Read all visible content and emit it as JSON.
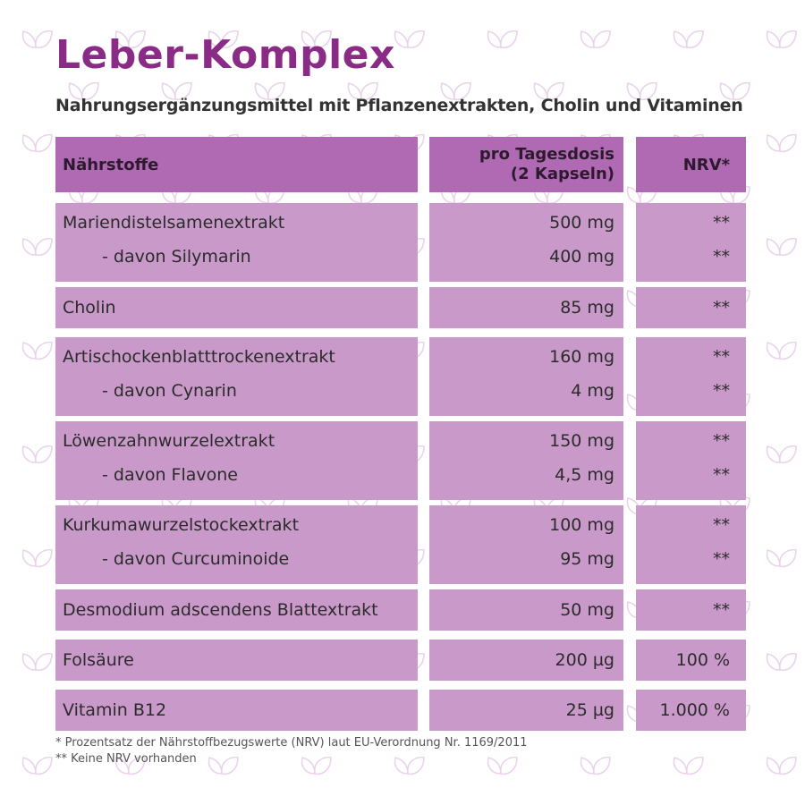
{
  "title": "Leber-Komplex",
  "subtitle": "Nahrungsergänzungsmittel mit Pflanzenextrakten, Cholin und Vitaminen",
  "table": {
    "headers": {
      "nutrients": "Nährstoffe",
      "per_dose_line1": "pro Tagesdosis",
      "per_dose_line2": "(2 Kapseln)",
      "nrv": "NRV*"
    },
    "groups": [
      {
        "rows": [
          {
            "name": "Mariendistelsamenextrakt",
            "amount": "500 mg",
            "nrv": "**"
          },
          {
            "name": "- davon Silymarin",
            "amount": "400 mg",
            "nrv": "**"
          }
        ]
      },
      {
        "rows": [
          {
            "name": "Cholin",
            "amount": "85 mg",
            "nrv": "**"
          }
        ]
      },
      {
        "rows": [
          {
            "name": "Artischockenblatttrockenextrakt",
            "amount": "160 mg",
            "nrv": "**"
          },
          {
            "name": "- davon Cynarin",
            "amount": "4 mg",
            "nrv": "**"
          }
        ]
      },
      {
        "rows": [
          {
            "name": "Löwenzahnwurzelextrakt",
            "amount": "150 mg",
            "nrv": "**"
          },
          {
            "name": "- davon Flavone",
            "amount": "4,5 mg",
            "nrv": "**"
          }
        ]
      },
      {
        "rows": [
          {
            "name": "Kurkumawurzelstockextrakt",
            "amount": "100 mg",
            "nrv": "**"
          },
          {
            "name": "- davon Curcuminoide",
            "amount": "95 mg",
            "nrv": "**"
          }
        ]
      },
      {
        "rows": [
          {
            "name": "Desmodium adscendens Blattextrakt",
            "amount": "50 mg",
            "nrv": "**"
          }
        ]
      },
      {
        "rows": [
          {
            "name": "Folsäure",
            "amount": "200 µg",
            "nrv": "100 %"
          }
        ]
      },
      {
        "rows": [
          {
            "name": "Vitamin B12",
            "amount": "25 µg",
            "nrv": "1.000 %"
          }
        ]
      }
    ]
  },
  "footnotes": [
    "* Prozentsatz der Nährstoffbezugswerte (NRV) laut EU-Verordnung Nr. 1169/2011",
    "** Keine NRV vorhanden"
  ],
  "colors": {
    "title": "#8a2b86",
    "header_bg": "#b06ab3",
    "row_bg": "#c99ac9",
    "pattern": "#e9d3ea"
  },
  "background_icon": "leaf-outline-icon"
}
